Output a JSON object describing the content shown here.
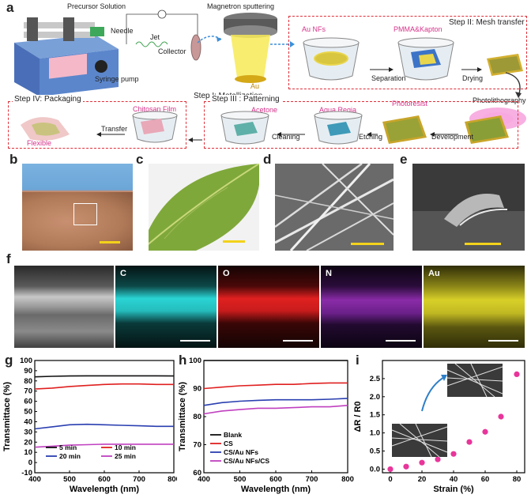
{
  "panels": {
    "a": "a",
    "b": "b",
    "c": "c",
    "d": "d",
    "e": "e",
    "f": "f",
    "g": "g",
    "h": "h",
    "i": "i"
  },
  "schematic": {
    "precursor": "Precursor Solution",
    "needle": "Needle",
    "jet": "Jet",
    "collector": "Collector",
    "syringe_pump": "Syringe pump",
    "magnetron": "Magnetron sputtering",
    "au": "Au",
    "step1": "Step I: Metallization",
    "au_nfs": "Au  NFs",
    "pmma_kapton": "PMMA&Kapton",
    "step2": "Step II: Mesh transfer",
    "separation": "Separation",
    "drying": "Drying",
    "photolithography": "Photolithography",
    "step3": "Step III : Patterning",
    "acetone": "Acetone",
    "aqua_regia": "Aqua Regia",
    "photoresist": "Photoresist",
    "cleaning": "Cleaning",
    "etching": "Etching",
    "development": "Development",
    "step4": "Step IV: Packaging",
    "chitosan": "Chitosan Film",
    "transfer": "Transfer",
    "flexible": "Flexible"
  },
  "eds": {
    "c": "C",
    "o": "O",
    "n": "N",
    "au": "Au"
  },
  "colors": {
    "dash": "#e0303a",
    "pink": "#d6338a",
    "scalebar": "#f3d21b",
    "cyan": "#2ad4d4",
    "red": "#e02020",
    "purple": "#8a2ba8",
    "yellow": "#d8d028"
  },
  "chart_data": [
    {
      "type": "line",
      "panel": "g",
      "xlabel": "Wavelength (nm)",
      "ylabel": "Transmittace (%)",
      "xlim": [
        400,
        800
      ],
      "ylim": [
        -10,
        100
      ],
      "xticks": [
        400,
        500,
        600,
        700,
        800
      ],
      "yticks": [
        -10,
        0,
        10,
        20,
        30,
        40,
        50,
        60,
        70,
        80,
        90,
        100
      ],
      "legend_position": "bottom",
      "series": [
        {
          "name": "5 min",
          "color": "#111111",
          "x": [
            400,
            450,
            500,
            550,
            600,
            650,
            700,
            750,
            800
          ],
          "values": [
            84,
            84.5,
            84.8,
            85,
            85,
            85,
            85,
            85,
            84.8
          ]
        },
        {
          "name": "10 min",
          "color": "#e02020",
          "x": [
            400,
            450,
            500,
            550,
            600,
            650,
            700,
            750,
            800
          ],
          "values": [
            72,
            73,
            74.5,
            75.5,
            76.5,
            77,
            77,
            76.5,
            76.5
          ]
        },
        {
          "name": "20 min",
          "color": "#2a3fb0",
          "x": [
            400,
            450,
            500,
            550,
            600,
            650,
            700,
            750,
            800
          ],
          "values": [
            33,
            35,
            37,
            37.5,
            37,
            36.5,
            36,
            35.5,
            35.5
          ]
        },
        {
          "name": "25 min",
          "color": "#c040c0",
          "x": [
            400,
            450,
            500,
            550,
            600,
            650,
            700,
            750,
            800
          ],
          "values": [
            15,
            16,
            17,
            17.5,
            18,
            18,
            18,
            18,
            18
          ]
        }
      ]
    },
    {
      "type": "line",
      "panel": "h",
      "xlabel": "Wavelength (nm)",
      "ylabel": "Transmittace (%)",
      "xlim": [
        400,
        800
      ],
      "ylim": [
        60,
        100
      ],
      "xticks": [
        400,
        500,
        600,
        700,
        800
      ],
      "yticks": [
        60,
        70,
        80,
        90,
        100
      ],
      "legend_position": "bottom-left",
      "series": [
        {
          "name": "Blank",
          "color": "#111111",
          "x": [
            400,
            450,
            500,
            550,
            600,
            650,
            700,
            750,
            800
          ],
          "values": [
            100,
            100,
            100,
            100,
            100,
            100,
            100,
            100,
            100
          ]
        },
        {
          "name": "CS",
          "color": "#e02020",
          "x": [
            400,
            450,
            500,
            550,
            600,
            650,
            700,
            750,
            800
          ],
          "values": [
            90,
            90.5,
            91,
            91.2,
            91.5,
            91.5,
            91.8,
            92,
            92
          ]
        },
        {
          "name": "CS/Au NFs",
          "color": "#2a3fb0",
          "x": [
            400,
            450,
            500,
            550,
            600,
            650,
            700,
            750,
            800
          ],
          "values": [
            84,
            85,
            85.5,
            85.8,
            86,
            86,
            86,
            86.2,
            86.5
          ]
        },
        {
          "name": "CS/Au NFs/CS",
          "color": "#c040c0",
          "x": [
            400,
            450,
            500,
            550,
            600,
            650,
            700,
            750,
            800
          ],
          "values": [
            81,
            82,
            82.5,
            83,
            83,
            83.2,
            83.5,
            83.5,
            84
          ]
        }
      ]
    },
    {
      "type": "scatter",
      "panel": "i",
      "xlabel": "Strain (%)",
      "ylabel": "ΔR / R0",
      "xlim": [
        -5,
        85
      ],
      "ylim": [
        -0.1,
        3.0
      ],
      "xticks": [
        0,
        20,
        40,
        60,
        80
      ],
      "yticks": [
        0.0,
        0.5,
        1.0,
        1.5,
        2.0,
        2.5
      ],
      "series": [
        {
          "name": "",
          "color": "#e8359a",
          "x": [
            0,
            10,
            20,
            30,
            40,
            50,
            60,
            70,
            80
          ],
          "values": [
            0.0,
            0.07,
            0.18,
            0.27,
            0.42,
            0.75,
            1.03,
            1.45,
            2.62
          ]
        }
      ]
    }
  ]
}
